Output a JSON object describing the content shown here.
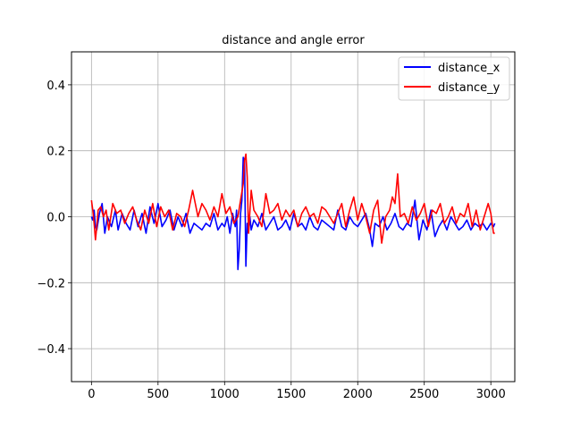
{
  "chart_data": {
    "type": "line",
    "title": "distance and angle error",
    "xlabel": "",
    "ylabel": "",
    "xlim": [
      -150,
      3180
    ],
    "ylim": [
      -0.5,
      0.5
    ],
    "xticks": [
      0,
      500,
      1000,
      1500,
      2000,
      2500,
      3000
    ],
    "yticks": [
      -0.4,
      -0.2,
      0.0,
      0.2,
      0.4
    ],
    "xtick_labels": [
      "0",
      "500",
      "1000",
      "1500",
      "2000",
      "2500",
      "3000"
    ],
    "ytick_labels": [
      "−0.4",
      "−0.2",
      "0.0",
      "0.2",
      "0.4"
    ],
    "grid": true,
    "legend_position": "top-right",
    "series": [
      {
        "name": "distance_x",
        "color": "#0000ff",
        "x": [
          0,
          10,
          20,
          30,
          40,
          60,
          80,
          100,
          120,
          150,
          180,
          200,
          230,
          260,
          290,
          320,
          350,
          380,
          410,
          440,
          470,
          500,
          530,
          560,
          590,
          620,
          650,
          680,
          710,
          740,
          770,
          800,
          830,
          860,
          890,
          920,
          950,
          980,
          1000,
          1020,
          1040,
          1060,
          1080,
          1090,
          1100,
          1110,
          1120,
          1130,
          1140,
          1150,
          1160,
          1170,
          1180,
          1190,
          1200,
          1220,
          1250,
          1280,
          1310,
          1340,
          1370,
          1400,
          1430,
          1460,
          1490,
          1520,
          1550,
          1580,
          1610,
          1640,
          1670,
          1700,
          1730,
          1760,
          1790,
          1820,
          1850,
          1880,
          1910,
          1940,
          1970,
          2000,
          2030,
          2060,
          2090,
          2110,
          2130,
          2160,
          2190,
          2220,
          2250,
          2280,
          2310,
          2340,
          2370,
          2400,
          2430,
          2460,
          2490,
          2520,
          2550,
          2580,
          2610,
          2640,
          2670,
          2700,
          2730,
          2760,
          2790,
          2820,
          2850,
          2880,
          2910,
          2940,
          2970,
          3000,
          3020,
          3030
        ],
        "y": [
          0.0,
          -0.01,
          0.02,
          -0.03,
          -0.04,
          0.01,
          0.04,
          -0.05,
          0.0,
          -0.03,
          0.02,
          -0.04,
          0.01,
          -0.02,
          -0.04,
          0.02,
          -0.03,
          0.01,
          -0.05,
          0.03,
          -0.02,
          0.04,
          -0.03,
          -0.01,
          0.02,
          -0.04,
          0.0,
          -0.03,
          0.01,
          -0.05,
          -0.02,
          -0.03,
          -0.04,
          -0.02,
          -0.03,
          0.01,
          -0.04,
          -0.02,
          -0.03,
          0.0,
          -0.05,
          0.01,
          -0.03,
          0.02,
          -0.16,
          -0.1,
          0.01,
          0.05,
          0.18,
          0.17,
          -0.15,
          -0.02,
          -0.05,
          0.0,
          -0.04,
          -0.01,
          -0.03,
          0.01,
          -0.04,
          -0.02,
          0.0,
          -0.04,
          -0.03,
          -0.01,
          -0.04,
          0.01,
          -0.03,
          -0.02,
          -0.04,
          0.0,
          -0.03,
          -0.04,
          -0.01,
          -0.02,
          -0.03,
          -0.04,
          0.02,
          -0.03,
          -0.04,
          0.0,
          -0.02,
          -0.03,
          -0.01,
          0.01,
          -0.04,
          -0.09,
          -0.02,
          -0.03,
          0.0,
          -0.04,
          -0.02,
          0.01,
          -0.03,
          -0.04,
          -0.02,
          -0.03,
          0.05,
          -0.07,
          -0.01,
          -0.04,
          0.02,
          -0.06,
          -0.03,
          -0.01,
          -0.04,
          0.0,
          -0.02,
          -0.04,
          -0.03,
          -0.01,
          -0.04,
          -0.02,
          -0.03,
          -0.02,
          -0.04,
          -0.02,
          -0.03,
          -0.02
        ]
      },
      {
        "name": "distance_y",
        "color": "#ff0000",
        "x": [
          0,
          10,
          20,
          30,
          40,
          50,
          70,
          90,
          110,
          130,
          160,
          190,
          220,
          250,
          280,
          310,
          340,
          370,
          400,
          430,
          460,
          490,
          520,
          550,
          580,
          610,
          640,
          670,
          700,
          730,
          760,
          780,
          800,
          830,
          860,
          890,
          920,
          950,
          980,
          1010,
          1040,
          1070,
          1100,
          1120,
          1140,
          1150,
          1160,
          1170,
          1180,
          1200,
          1220,
          1250,
          1280,
          1310,
          1340,
          1370,
          1400,
          1430,
          1460,
          1490,
          1520,
          1550,
          1580,
          1610,
          1640,
          1670,
          1700,
          1730,
          1760,
          1790,
          1820,
          1850,
          1880,
          1910,
          1940,
          1970,
          2000,
          2030,
          2060,
          2090,
          2120,
          2150,
          2180,
          2210,
          2240,
          2260,
          2280,
          2300,
          2320,
          2350,
          2380,
          2410,
          2440,
          2470,
          2500,
          2530,
          2560,
          2590,
          2620,
          2650,
          2680,
          2710,
          2740,
          2770,
          2800,
          2830,
          2860,
          2890,
          2920,
          2950,
          2980,
          3000,
          3020,
          3030
        ],
        "y": [
          0.05,
          0.02,
          -0.02,
          -0.07,
          -0.03,
          0.02,
          0.03,
          0.0,
          0.02,
          -0.04,
          0.04,
          0.01,
          0.02,
          -0.02,
          0.01,
          0.03,
          -0.01,
          -0.04,
          0.02,
          -0.02,
          0.04,
          -0.03,
          0.03,
          0.0,
          0.02,
          -0.04,
          0.01,
          0.0,
          -0.03,
          0.02,
          0.08,
          0.04,
          0.0,
          0.04,
          0.02,
          -0.01,
          0.03,
          0.0,
          0.07,
          0.01,
          0.03,
          -0.02,
          0.0,
          0.05,
          0.1,
          0.17,
          0.19,
          0.12,
          -0.05,
          0.08,
          0.02,
          0.0,
          -0.03,
          0.07,
          0.01,
          0.02,
          0.04,
          -0.01,
          0.02,
          0.0,
          0.02,
          -0.03,
          0.01,
          0.03,
          0.0,
          0.01,
          -0.02,
          0.03,
          0.02,
          0.0,
          -0.02,
          0.01,
          0.04,
          -0.03,
          0.02,
          0.06,
          -0.01,
          0.04,
          0.0,
          -0.05,
          0.02,
          0.05,
          -0.08,
          0.0,
          0.02,
          0.06,
          0.04,
          0.13,
          0.0,
          0.01,
          -0.02,
          0.03,
          -0.01,
          0.01,
          0.04,
          -0.03,
          0.02,
          0.01,
          0.04,
          -0.02,
          0.0,
          0.03,
          -0.02,
          0.01,
          0.0,
          0.04,
          -0.03,
          0.02,
          -0.04,
          0.0,
          0.04,
          0.01,
          -0.05,
          -0.05
        ]
      }
    ]
  }
}
